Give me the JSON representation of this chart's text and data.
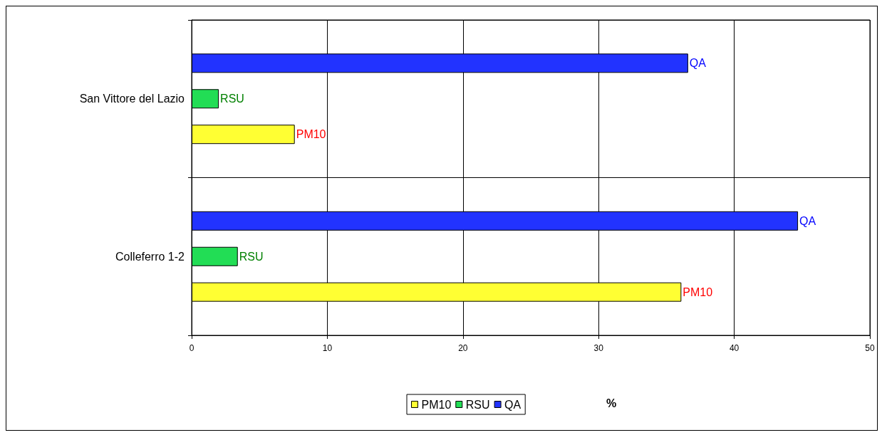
{
  "chart_data": {
    "type": "bar",
    "orientation": "horizontal",
    "categories": [
      "San Vittore del Lazio",
      "Colleferro 1-2"
    ],
    "series": [
      {
        "name": "PM10",
        "color": "#ffff33",
        "values": [
          7.6,
          36.1
        ]
      },
      {
        "name": "RSU",
        "color": "#22dd55",
        "values": [
          2.0,
          3.4
        ]
      },
      {
        "name": "QA",
        "color": "#2233ff",
        "values": [
          36.6,
          44.7
        ]
      }
    ],
    "xlabel": "%",
    "xlim": [
      0,
      50
    ],
    "xticks": [
      0,
      10,
      20,
      30,
      40,
      50
    ],
    "grid": true,
    "legend": "bottom"
  }
}
